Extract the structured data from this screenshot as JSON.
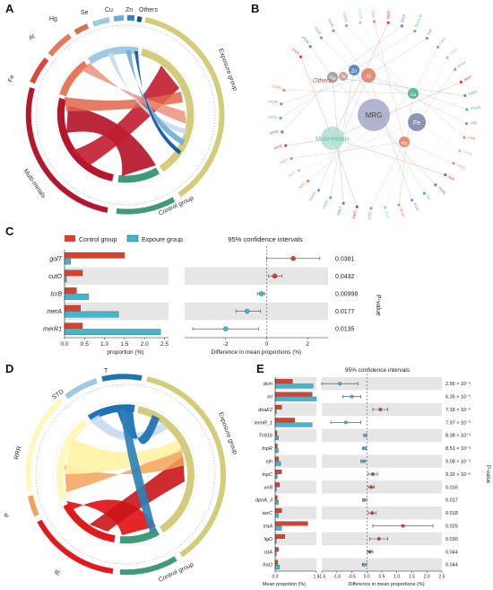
{
  "panels": {
    "A": {
      "label": "A"
    },
    "B": {
      "label": "B"
    },
    "C": {
      "label": "C"
    },
    "D": {
      "label": "D"
    },
    "E": {
      "label": "E"
    }
  },
  "panel_a": {
    "outer_labels": [
      "Hg",
      "Se",
      "Cu",
      "Zn",
      "Others",
      "Al",
      "Fe",
      "Multi-metals",
      "Exposure group",
      "Control group"
    ],
    "sector_colors": {
      "Hg": "#e06c50",
      "Se": "#9ecae1",
      "Cu": "#6baed6",
      "Zn": "#3182bd",
      "Others": "#08519c",
      "Al": "#e5795a",
      "Fe": "#d9473d",
      "Multi-metals": "#b5162b",
      "Exposure group": "#d3cd7b",
      "Control group": "#3f9a78"
    }
  },
  "panel_b": {
    "center": "MRG",
    "hubs": [
      "Others",
      "Se",
      "Te",
      "Zn",
      "Al",
      "Cu",
      "Fe",
      "Hg",
      "Multi-metals"
    ],
    "peripheral_labels": [
      "zntA",
      "znuA",
      "copA",
      "cusA",
      "merA",
      "merR",
      "arsC",
      "ctpC",
      "fpvA",
      "ALU1-P",
      "fieF",
      "corC",
      "cueO",
      "pcoA",
      "actP",
      "cusS",
      "modA",
      "zitB",
      "nikA",
      "cadA",
      "czcD",
      "silP",
      "mntR",
      "fur",
      "feoB",
      "dpsA",
      "yfeP",
      "sodA",
      "katG",
      "merT",
      "merP",
      "merD",
      "terC",
      "tehA",
      "nccA",
      "chrA",
      "smtA",
      "recG",
      "oxyR",
      "soxR"
    ],
    "colors": {
      "Others": "#e8413d",
      "Se": "#a5a5a5",
      "Te": "#c7a892",
      "Zn": "#5b88c9",
      "Al": "#e58c7a",
      "Cu": "#5fb89b",
      "Fe": "#8a95b6",
      "Hg": "#f08a6c",
      "Multi-metals": "#9fd8c9"
    }
  },
  "panel_c": {
    "legend": [
      "Control group",
      "Expoure group"
    ],
    "ci_title": "95% confidence intervals",
    "xlabel_left": "proportion (%)",
    "xlabel_right": "Difference in mean proportions (%)",
    "pvalue_label": "P-value",
    "colors": {
      "control": "#d9412f",
      "exposure": "#41b6d1"
    }
  },
  "panel_d": {
    "outer_labels": [
      "STD",
      "T",
      "RRR",
      "P",
      "IE",
      "Exposure group",
      "Control group"
    ],
    "sector_colors": {
      "STD": "#9ecae1",
      "T": "#2171b5",
      "RRR": "#fff7bc",
      "P": "#f4a259",
      "IE": "#e31a1c",
      "Exposure group": "#d3cd7b",
      "Control group": "#3f9a78"
    }
  },
  "panel_e": {
    "ci_title": "95% confidence intervals",
    "xlabel_left": "Mean propotion (%)",
    "xlabel_right": "Difference in mean proportions (%)",
    "pvalue_label": "P-value",
    "colors": {
      "control": "#d9412f",
      "exposure": "#41b6d1"
    }
  },
  "chart_data": [
    {
      "type": "bar",
      "panel": "C",
      "categories": [
        "golT",
        "cutO",
        "tcrB",
        "merA",
        "merR1"
      ],
      "series": [
        {
          "name": "Control group",
          "values": [
            1.5,
            0.45,
            0.3,
            0.4,
            0.45
          ]
        },
        {
          "name": "Expoure group",
          "values": [
            0.15,
            0.05,
            0.6,
            1.35,
            2.4
          ]
        }
      ],
      "xlabel": "proportion (%)",
      "xticks": [
        "0.0",
        "0.5",
        "1.0",
        "1.5",
        "2.0",
        "2.5"
      ],
      "xlim": [
        0,
        2.6
      ],
      "diff": [
        1.3,
        0.4,
        -0.25,
        -0.95,
        -2.0
      ],
      "ci_low": [
        0.0,
        0.1,
        -0.45,
        -1.5,
        -3.6
      ],
      "ci_high": [
        2.6,
        0.75,
        -0.1,
        -0.3,
        -0.4
      ],
      "diff_xticks": [
        "-2",
        "0",
        "2"
      ],
      "diff_xlim": [
        -4,
        3
      ],
      "pvalues": [
        "0.0381",
        "0.0432",
        "0.00998",
        "0.0177",
        "0.0135"
      ]
    },
    {
      "type": "bar",
      "panel": "E",
      "categories": [
        "dcm",
        "int",
        "dnaE2",
        "immR_1",
        "Tn916",
        "tnpR",
        "ejh",
        "tnpC",
        "virB",
        "dpnA_3",
        "xerC",
        "traA",
        "ligD",
        "istA",
        "traO"
      ],
      "series": [
        {
          "name": "Control group",
          "values": [
            0.8,
            1.7,
            0.3,
            0.9,
            0.08,
            0.1,
            0.15,
            0.3,
            0.2,
            0.1,
            0.3,
            1.5,
            0.45,
            0.15,
            0.12
          ]
        },
        {
          "name": "Expoure group",
          "values": [
            1.75,
            1.9,
            0.05,
            1.7,
            0.15,
            0.15,
            0.25,
            0.1,
            0.05,
            0.15,
            0.15,
            0.3,
            0.05,
            0.05,
            0.2
          ]
        }
      ],
      "xlabel": "Mean propotion (%)",
      "xticks": [
        "0.0",
        "1.9"
      ],
      "xlim": [
        0,
        1.9
      ],
      "diff": [
        -0.9,
        -0.5,
        0.45,
        -0.7,
        -0.05,
        -0.08,
        -0.12,
        0.2,
        0.15,
        -0.08,
        0.18,
        1.2,
        0.4,
        0.1,
        -0.08
      ],
      "ci_low": [
        -1.5,
        -0.8,
        0.2,
        -1.2,
        -0.1,
        -0.15,
        -0.2,
        0.05,
        0.05,
        -0.15,
        0.05,
        0.2,
        0.1,
        0.02,
        -0.15
      ],
      "ci_high": [
        -0.3,
        -0.2,
        0.7,
        -0.2,
        0.0,
        -0.02,
        -0.04,
        0.35,
        0.25,
        0.0,
        0.3,
        2.2,
        0.7,
        0.2,
        0.0
      ],
      "diff_xticks": [
        "-1.5",
        "-1.0",
        "-0.5",
        "0.0",
        "0.5",
        "1.0",
        "1.5",
        "2.0",
        "2.5"
      ],
      "diff_xlim": [
        -1.5,
        2.5
      ],
      "pvalues": [
        "2.56 × 10⁻⁵",
        "6.35 × 10⁻⁵",
        "7.18 × 10⁻⁵",
        "7.97 × 10⁻⁵",
        "8.38 × 10⁻⁵",
        "8.51 × 10⁻⁵",
        "9.08 × 10⁻⁵",
        "9.32 × 10⁻⁵",
        "0.016",
        "0.017",
        "0.018",
        "0.025",
        "0.030",
        "0.044",
        "0.044"
      ]
    }
  ]
}
